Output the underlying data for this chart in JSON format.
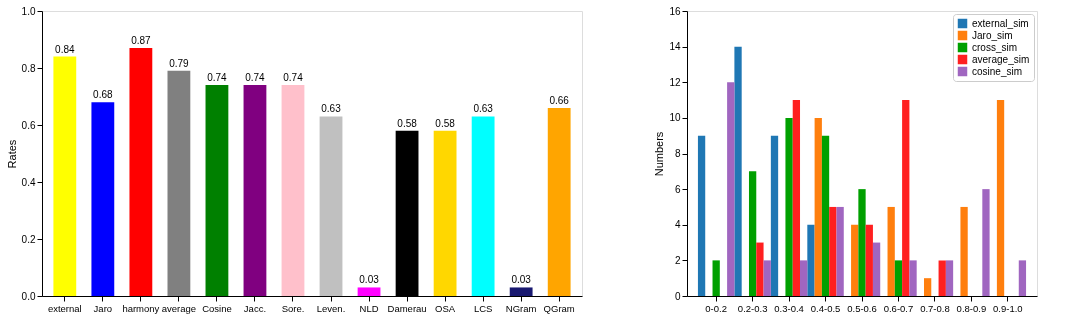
{
  "chart_data": [
    {
      "type": "bar",
      "ylabel": "Rates",
      "categories": [
        "external",
        "Jaro",
        "harmony",
        "average",
        "Cosine",
        "Jacc.",
        "Sore.",
        "Leven.",
        "NLD",
        "Damerau",
        "OSA",
        "LCS",
        "NGram",
        "QGram"
      ],
      "values": [
        0.84,
        0.68,
        0.87,
        0.79,
        0.74,
        0.74,
        0.74,
        0.63,
        0.03,
        0.58,
        0.58,
        0.63,
        0.03,
        0.66
      ],
      "colors": [
        "#ffff00",
        "#0000ff",
        "#ff0000",
        "#808080",
        "#008000",
        "#800080",
        "#ffc0cb",
        "#c0c0c0",
        "#ff00ff",
        "#000000",
        "#ffd700",
        "#00ffff",
        "#191970",
        "#ffa500"
      ],
      "ylim": [
        0,
        1.0
      ],
      "yticks": [
        {
          "value": 0,
          "label": "0.0"
        },
        0.2,
        0.4,
        0.6,
        0.8,
        {
          "value": 1,
          "label": "1.0"
        }
      ],
      "data_labels": true,
      "grid": false
    },
    {
      "type": "bar",
      "ylabel": "Numbers",
      "categories": [
        "0-0.2",
        "0.2-0.3",
        "0.3-0.4",
        "0.4-0.5",
        "0.5-0.6",
        "0.6-0.7",
        "0.7-0.8",
        "0.8-0.9",
        "0.9-1.0"
      ],
      "series": [
        {
          "name": "external_sim",
          "color": "#1f77b4",
          "values": [
            9,
            14,
            9,
            4,
            0,
            0,
            0,
            0,
            0
          ]
        },
        {
          "name": "Jaro_sim",
          "color": "#ff7f0e",
          "values": [
            0,
            0,
            0,
            10,
            4,
            5,
            1,
            5,
            11
          ]
        },
        {
          "name": "cross_sim",
          "color": "#00a000",
          "values": [
            2,
            7,
            10,
            9,
            6,
            2,
            0,
            0,
            0
          ]
        },
        {
          "name": "average_sim",
          "color": "#ff2020",
          "values": [
            0,
            3,
            11,
            5,
            4,
            11,
            2,
            0,
            0
          ]
        },
        {
          "name": "cosine_sim",
          "color": "#a066c0",
          "values": [
            12,
            2,
            2,
            5,
            3,
            2,
            2,
            6,
            2
          ]
        }
      ],
      "ylim": [
        0,
        16
      ],
      "yticks": [
        0,
        2,
        4,
        6,
        8,
        10,
        12,
        14,
        16
      ],
      "legend": "top right",
      "grid": false
    }
  ]
}
